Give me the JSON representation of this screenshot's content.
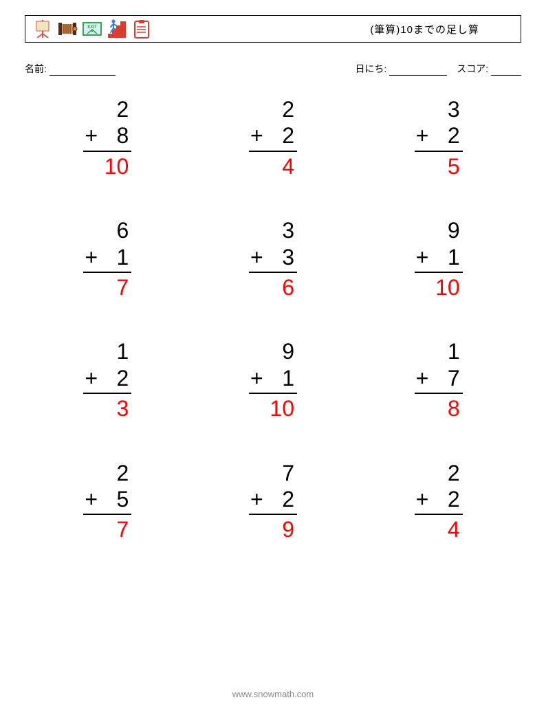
{
  "header": {
    "title": "(筆算)10までの足し算",
    "icons": [
      {
        "name": "easel-icon",
        "fg": "#d9534f",
        "bg": "#f3e4c0"
      },
      {
        "name": "accordion-icon",
        "fg": "#4a2c20",
        "bg": "#d98e4a"
      },
      {
        "name": "exit-icon",
        "fg": "#3aa24a",
        "bg": "#d6eef9",
        "text": "EXIT"
      },
      {
        "name": "stairs-icon",
        "fg": "#e03a2f",
        "bg": "#3b7bd6"
      },
      {
        "name": "clipboard-icon",
        "fg": "#e03a2f",
        "bg": "#ffffff"
      }
    ]
  },
  "meta": {
    "name_label": "名前:",
    "date_label": "日にち:",
    "score_label": "スコア:"
  },
  "style": {
    "problem_fontsize": 32,
    "answer_color": "#ff0000",
    "number_color": "#000000",
    "rule_color": "#000000",
    "columns": 3,
    "rows": 4,
    "operator": "+"
  },
  "problems": [
    {
      "a": 2,
      "b": 8,
      "ans": 10
    },
    {
      "a": 2,
      "b": 2,
      "ans": 4
    },
    {
      "a": 3,
      "b": 2,
      "ans": 5
    },
    {
      "a": 6,
      "b": 1,
      "ans": 7
    },
    {
      "a": 3,
      "b": 3,
      "ans": 6
    },
    {
      "a": 9,
      "b": 1,
      "ans": 10
    },
    {
      "a": 1,
      "b": 2,
      "ans": 3
    },
    {
      "a": 9,
      "b": 1,
      "ans": 10
    },
    {
      "a": 1,
      "b": 7,
      "ans": 8
    },
    {
      "a": 2,
      "b": 5,
      "ans": 7
    },
    {
      "a": 7,
      "b": 2,
      "ans": 9
    },
    {
      "a": 2,
      "b": 2,
      "ans": 4
    }
  ],
  "footer": {
    "text": "www.snowmath.com"
  }
}
